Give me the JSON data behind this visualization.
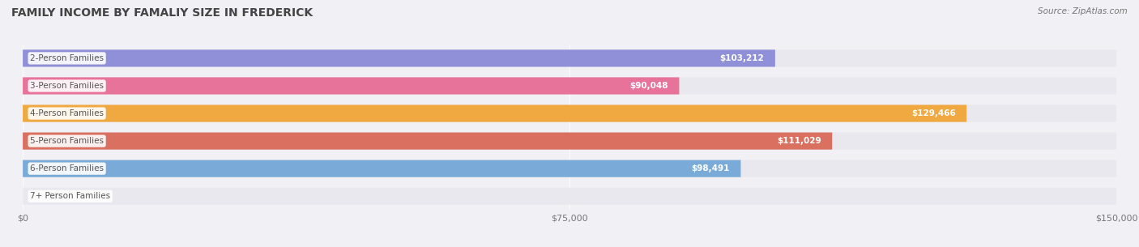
{
  "title": "FAMILY INCOME BY FAMALIY SIZE IN FREDERICK",
  "source": "Source: ZipAtlas.com",
  "categories": [
    "2-Person Families",
    "3-Person Families",
    "4-Person Families",
    "5-Person Families",
    "6-Person Families",
    "7+ Person Families"
  ],
  "values": [
    103212,
    90048,
    129466,
    111029,
    98491,
    0
  ],
  "bar_colors": [
    "#9090d8",
    "#e8739a",
    "#f0a840",
    "#d97060",
    "#7aaad8",
    "#c8b8d8"
  ],
  "bar_colors_light": [
    "#c8c8f0",
    "#f8b0cc",
    "#f8cc80",
    "#eeaa98",
    "#a8ccf0",
    "#e8d8f0"
  ],
  "xlim": [
    0,
    150000
  ],
  "xticks": [
    0,
    75000,
    150000
  ],
  "xtick_labels": [
    "$0",
    "$75,000",
    "$150,000"
  ],
  "label_fontsize": 7.5,
  "title_fontsize": 10,
  "value_label_fontsize": 7.5,
  "background_color": "#f0f0f5",
  "bar_height": 0.62,
  "bar_bg_color": "#e8e8ee"
}
